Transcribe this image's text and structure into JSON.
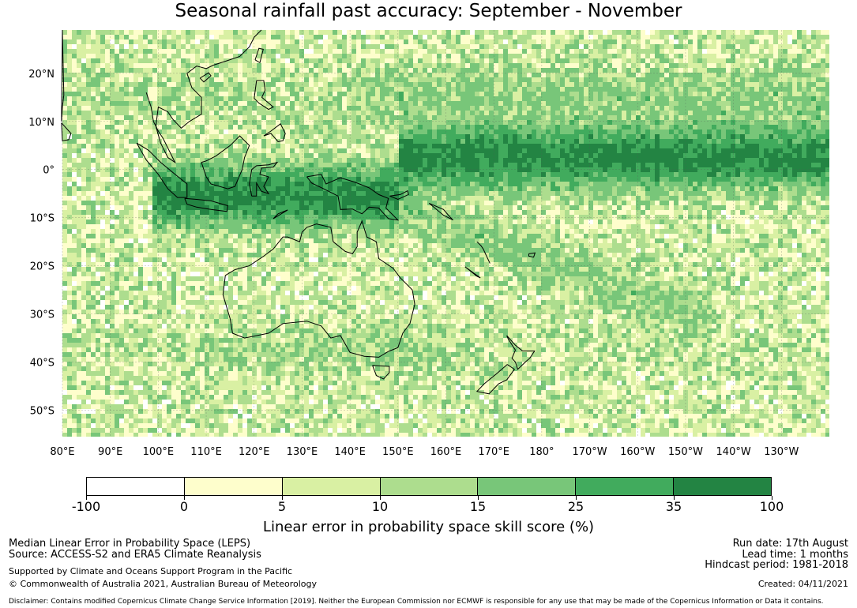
{
  "title": "Seasonal rainfall past accuracy: September - November",
  "map": {
    "lat_labels": [
      "20°N",
      "10°N",
      "0°",
      "10°S",
      "20°S",
      "30°S",
      "40°S",
      "50°S"
    ],
    "lon_labels": [
      "80°E",
      "90°E",
      "100°E",
      "110°E",
      "120°E",
      "130°E",
      "140°E",
      "150°E",
      "160°E",
      "170°E",
      "180°",
      "170°W",
      "160°W",
      "150°W",
      "140°W",
      "130°W"
    ],
    "extent": {
      "lon_min": 80,
      "lon_max": 240,
      "lat_min": -55.5,
      "lat_max": 29
    }
  },
  "colorbar": {
    "title": "Linear error in probability space skill score (%)",
    "ticks": [
      "-100",
      "0",
      "5",
      "10",
      "15",
      "25",
      "35",
      "100"
    ],
    "colors": [
      "#ffffff",
      "#fefecc",
      "#d9f0a3",
      "#addd8e",
      "#78c679",
      "#41ab5d",
      "#238443"
    ]
  },
  "footer": {
    "line1": "Median Linear Error in Probability Space (LEPS)",
    "line2": "Source: ACCESS-S2 and ERA5 Climate Reanalysis",
    "line3": "Supported by Climate and Oceans Support Program in the Pacific",
    "line4": "© Commonwealth of Australia 2021, Australian Bureau of Meteorology",
    "run_date": "Run date: 17th August",
    "lead_time": "Lead time: 1 months",
    "hindcast": "Hindcast period: 1981-2018",
    "created": "Created: 04/11/2021",
    "disclaimer": "Disclaimer: Contains modified Copernicus Climate Change Service Information [2019]. Neither the European Commission nor ECMWF is responsible for any use that may be made of the Copernicus Information or Data it contains."
  }
}
